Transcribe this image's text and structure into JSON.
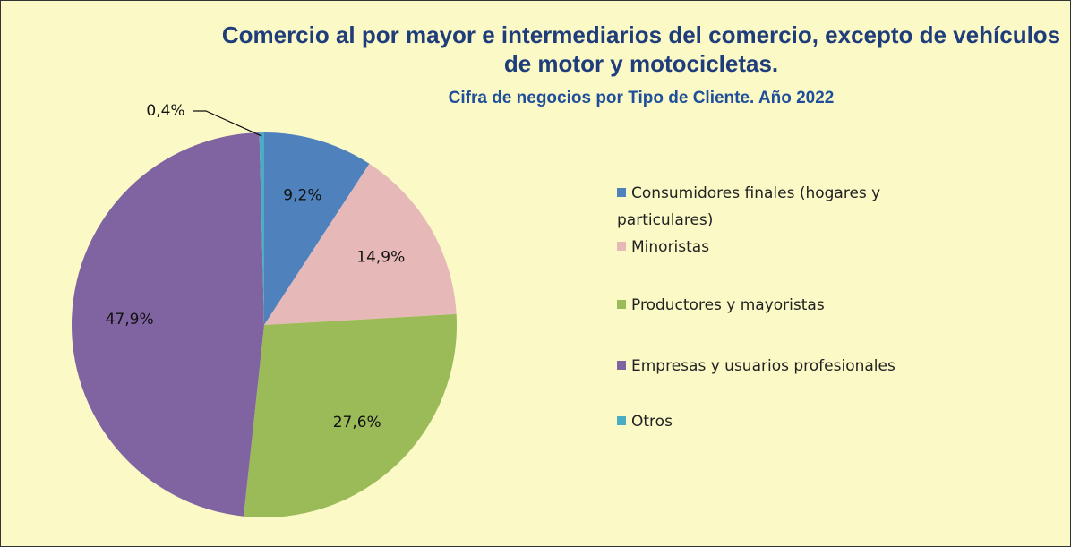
{
  "chart_data": {
    "type": "pie",
    "title": "Comercio al por mayor e intermediarios del comercio, excepto de vehículos de motor y motocicletas.",
    "subtitle": "Cifra de negocios por Tipo de Cliente. Año 2022",
    "categories": [
      "Consumidores finales (hogares y particulares)",
      "Minoristas",
      "Productores y mayoristas",
      "Empresas y usuarios profesionales",
      "Otros"
    ],
    "values": [
      9.2,
      14.9,
      27.6,
      47.9,
      0.4
    ],
    "value_labels": [
      "9,2%",
      "14,9%",
      "27,6%",
      "47,9%",
      "0,4%"
    ],
    "colors": [
      "#4f81bd",
      "#e6b9b8",
      "#9bbb59",
      "#8064a2",
      "#4bacc6"
    ],
    "legend": "right"
  }
}
